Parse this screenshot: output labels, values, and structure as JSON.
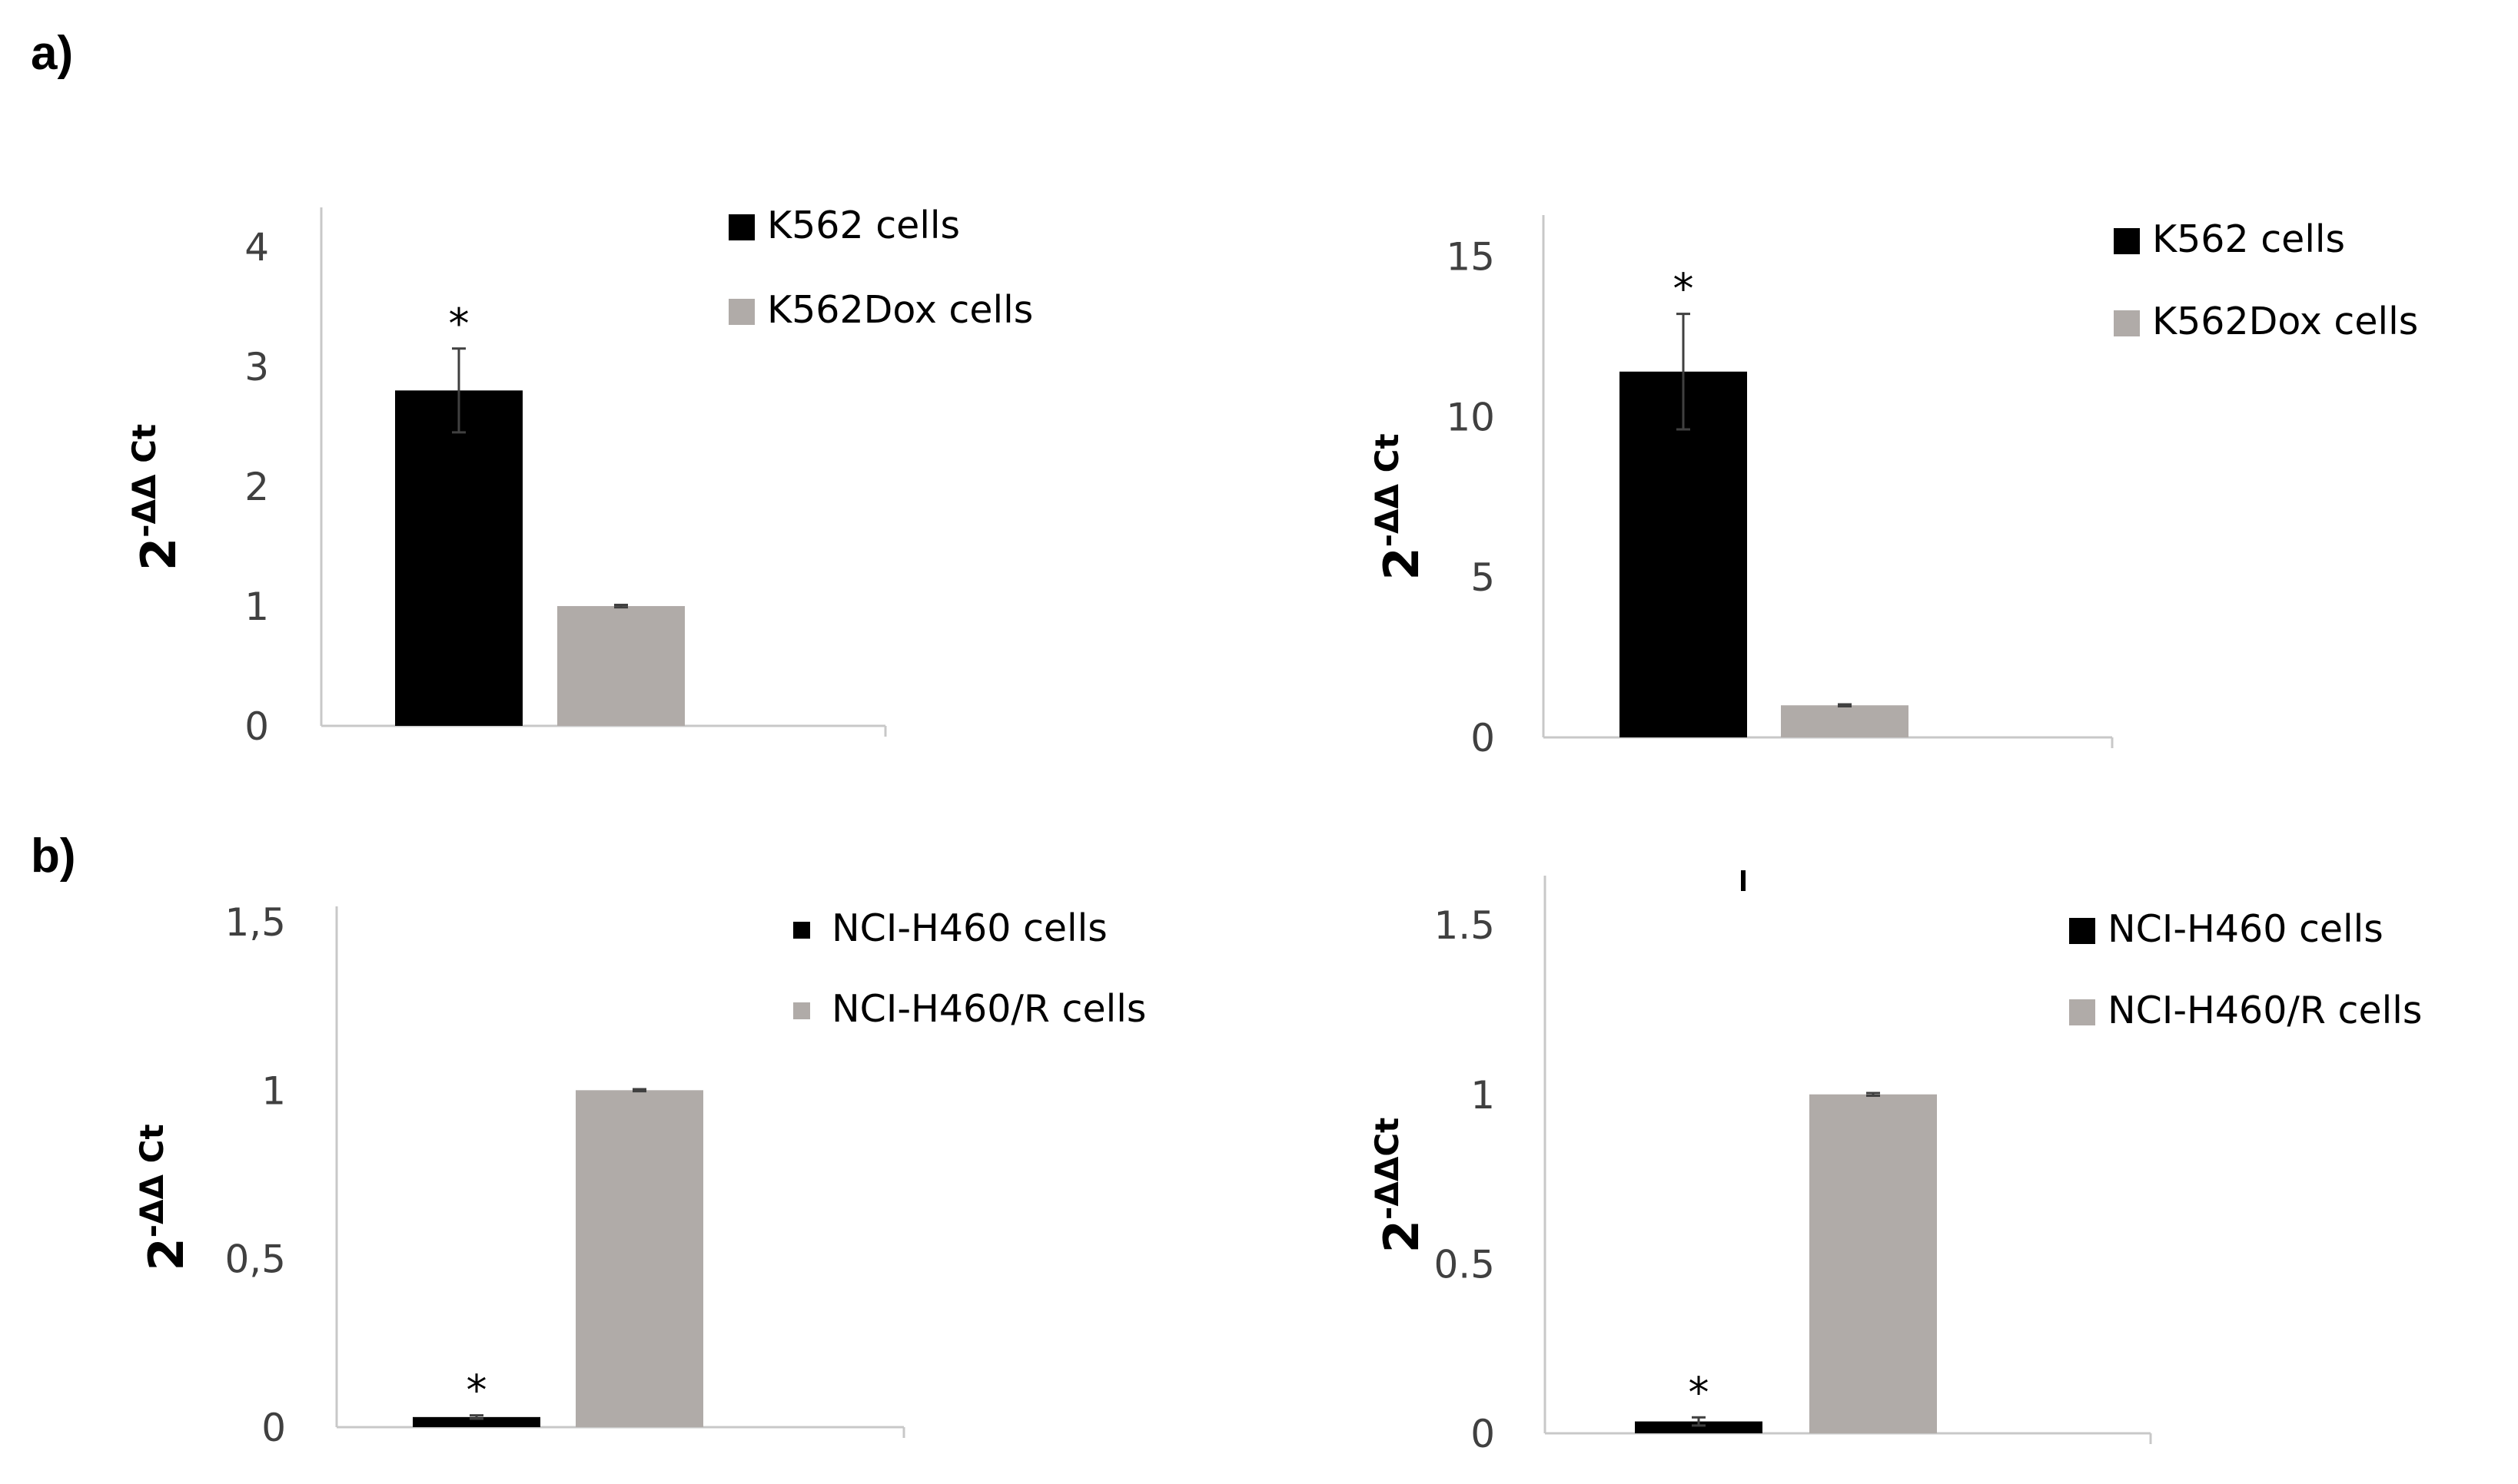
{
  "panel_labels": [
    "a)",
    "b)"
  ],
  "colors": {
    "series1": "#000000",
    "series2": "#b0aba8"
  },
  "chart_data": [
    {
      "type": "bar",
      "panel": "a)",
      "ylabel": {
        "base": "2",
        "exp": "-ΔΔ Ct"
      },
      "yticks": [
        "0",
        "1",
        "2",
        "3",
        "4"
      ],
      "ytick_values": [
        0,
        1,
        2,
        3,
        4
      ],
      "ylim": [
        0,
        4.2
      ],
      "series": [
        {
          "name": "K562 cells",
          "value": 2.8,
          "error": 0.35,
          "significant": true,
          "sig_label": "*"
        },
        {
          "name": "K562Dox cells",
          "value": 1.0,
          "error": 0.01,
          "significant": false,
          "sig_label": ""
        }
      ]
    },
    {
      "type": "bar",
      "panel": "a)",
      "ylabel": {
        "base": "2",
        "exp": "-ΔΔ Ct"
      },
      "yticks": [
        "0",
        "5",
        "10",
        "15"
      ],
      "ytick_values": [
        0,
        5,
        10,
        15
      ],
      "ylim": [
        0,
        15.8
      ],
      "series": [
        {
          "name": "K562 cells",
          "value": 11.4,
          "error": 1.8,
          "significant": true,
          "sig_label": "*"
        },
        {
          "name": "K562Dox cells",
          "value": 1.0,
          "error": 0.03,
          "significant": false,
          "sig_label": ""
        }
      ]
    },
    {
      "type": "bar",
      "panel": "b)",
      "ylabel": {
        "base": "2",
        "exp": "-ΔΔ Ct"
      },
      "yticks": [
        "0",
        "0,5",
        "1",
        "1,5"
      ],
      "ytick_values": [
        0,
        0.5,
        1,
        1.5
      ],
      "ylim": [
        0,
        1.5
      ],
      "series": [
        {
          "name": "NCI-H460 cells",
          "value": 0.03,
          "error": 0.005,
          "significant": true,
          "sig_label": "*"
        },
        {
          "name": "NCI-H460/R cells",
          "value": 1.0,
          "error": 0.003,
          "significant": false,
          "sig_label": ""
        }
      ]
    },
    {
      "type": "bar",
      "panel": "b)",
      "ylabel": {
        "base": "2",
        "exp": "-ΔΔCt"
      },
      "yticks": [
        "0",
        "0.5",
        "1",
        "1.5"
      ],
      "ytick_values": [
        0,
        0.5,
        1,
        1.5
      ],
      "ylim": [
        0,
        1.6
      ],
      "series": [
        {
          "name": "NCI-H460 cells",
          "value": 0.035,
          "error": 0.012,
          "significant": true,
          "sig_label": "*"
        },
        {
          "name": "NCI-H460/R cells",
          "value": 1.0,
          "error": 0.004,
          "significant": false,
          "sig_label": ""
        }
      ]
    }
  ]
}
